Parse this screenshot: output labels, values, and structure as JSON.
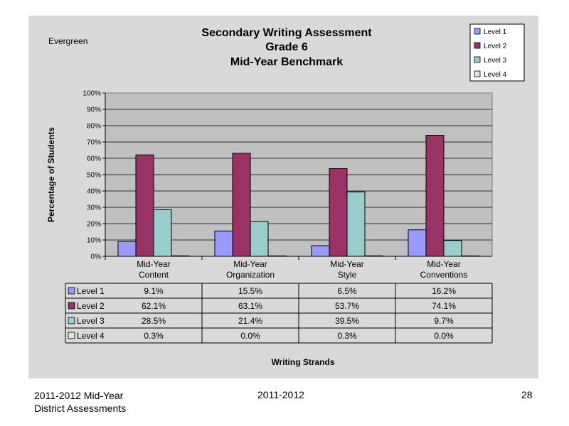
{
  "school": "Evergreen",
  "chart_data": {
    "type": "bar",
    "title": [
      "Secondary Writing Assessment",
      "Grade 6",
      "Mid-Year Benchmark"
    ],
    "xlabel": "Writing Strands",
    "ylabel": "Percentage of Students",
    "ylim": [
      0,
      100
    ],
    "yticks": [
      "0%",
      "10%",
      "20%",
      "30%",
      "40%",
      "50%",
      "60%",
      "70%",
      "80%",
      "90%",
      "100%"
    ],
    "categories": [
      [
        "Mid-Year",
        "Content"
      ],
      [
        "Mid-Year",
        "Organization"
      ],
      [
        "Mid-Year",
        "Style"
      ],
      [
        "Mid-Year",
        "Conventions"
      ]
    ],
    "series": [
      {
        "name": "Level 1",
        "color": "#9999ff",
        "values": [
          9.1,
          15.5,
          6.5,
          16.2
        ],
        "labels": [
          "9.1%",
          "15.5%",
          "6.5%",
          "16.2%"
        ]
      },
      {
        "name": "Level 2",
        "color": "#993366",
        "values": [
          62.1,
          63.1,
          53.7,
          74.1
        ],
        "labels": [
          "62.1%",
          "63.1%",
          "53.7%",
          "74.1%"
        ]
      },
      {
        "name": "Level 3",
        "color": "#99cccc",
        "values": [
          28.5,
          21.4,
          39.5,
          9.7
        ],
        "labels": [
          "28.5%",
          "21.4%",
          "39.5%",
          "9.7%"
        ]
      },
      {
        "name": "Level 4",
        "color": "#e0e0e0",
        "values": [
          0.3,
          0.0,
          0.3,
          0.0
        ],
        "labels": [
          "0.3%",
          "0.0%",
          "0.3%",
          "0.0%"
        ]
      }
    ],
    "grid": true,
    "legend": "top-right",
    "data_table": true
  },
  "footer": {
    "left_line1": "2011-2012  Mid-Year",
    "left_line2": "District Assessments",
    "center": "2011-2012",
    "page_number": "28"
  }
}
